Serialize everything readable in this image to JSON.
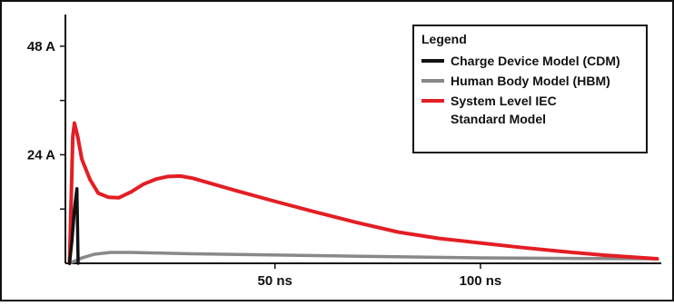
{
  "chart_data": {
    "type": "line",
    "title": "",
    "xlabel": "",
    "ylabel": "",
    "xlim": [
      -1,
      144
    ],
    "ylim": [
      0,
      55
    ],
    "x_ticks": [
      {
        "value": 50,
        "label": "50 ns"
      },
      {
        "value": 100,
        "label": "100 ns"
      }
    ],
    "y_ticks": [
      {
        "value": 24,
        "label": "24 A"
      },
      {
        "value": 48,
        "label": "48 A"
      }
    ],
    "y_minor_ticks": [
      12,
      36
    ],
    "grid": false,
    "legend": {
      "title": "Legend",
      "placement": "top-right",
      "entries": [
        {
          "label": "Charge Device Model (CDM)",
          "series": 0
        },
        {
          "label": "Human Body Model (HBM)",
          "series": 1
        },
        {
          "label_lines": [
            "System Level IEC",
            "Standard Model"
          ],
          "series": 2
        }
      ]
    },
    "series": [
      {
        "name": "Charge Device Model (CDM)",
        "color": "#111111",
        "x": [
          0,
          0.6,
          1.2,
          1.8,
          2.1
        ],
        "y": [
          0,
          5,
          12,
          16.5,
          0
        ]
      },
      {
        "name": "Human Body Model (HBM)",
        "color": "#888888",
        "x": [
          0,
          3,
          6,
          10,
          15,
          30,
          60,
          100,
          143
        ],
        "y": [
          0,
          1.2,
          2.0,
          2.4,
          2.4,
          2.1,
          1.7,
          1.2,
          1.0
        ]
      },
      {
        "name": "System Level IEC Standard Model",
        "color": "#e31e24",
        "x": [
          0,
          0.8,
          1.2,
          2,
          3,
          5,
          7,
          9.5,
          12,
          15,
          18,
          21,
          24,
          27,
          30,
          35,
          40,
          50,
          60,
          70,
          80,
          90,
          100,
          110,
          120,
          130,
          143
        ],
        "y": [
          0,
          28,
          31,
          28,
          23,
          18.5,
          15.5,
          14.6,
          14.5,
          15.8,
          17.5,
          18.6,
          19.2,
          19.3,
          18.8,
          17.5,
          16.2,
          13.7,
          11.3,
          9.0,
          6.9,
          5.5,
          4.5,
          3.5,
          2.6,
          1.8,
          1.0
        ]
      }
    ]
  }
}
